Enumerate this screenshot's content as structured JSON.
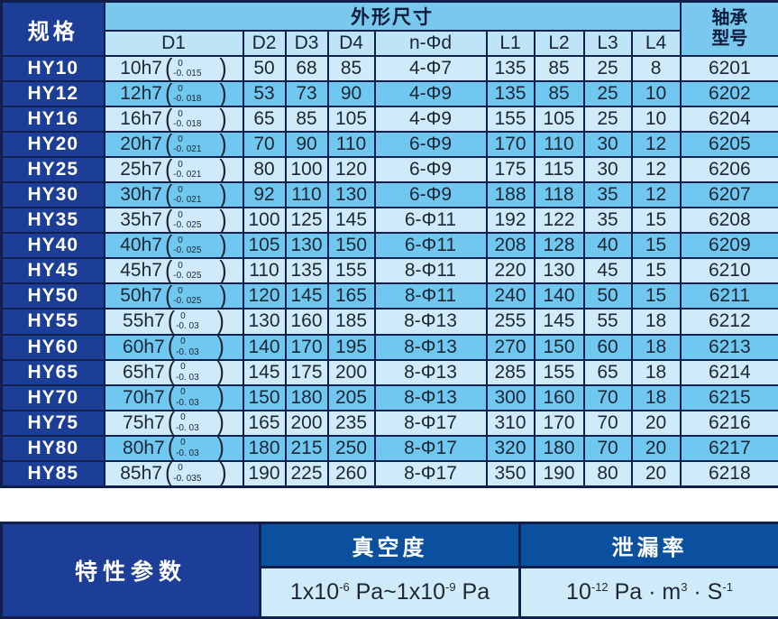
{
  "colors": {
    "navy": "#1d3e96",
    "azure": "#0b509f",
    "border": "#101f4c",
    "band": "#79c9ee",
    "subheader": "#bfe4f6",
    "row-light": "#cfeaf9",
    "row-medium": "#70c7f0",
    "text-dark": "#1d2736",
    "text-white": "#ffffff",
    "page-bg": "#ffffff"
  },
  "main_table": {
    "spec_header": "规格",
    "dims_header": "外形尺寸",
    "sub_columns": [
      "D1",
      "D2",
      "D3",
      "D4",
      "n-Φd",
      "L1",
      "L2",
      "L3",
      "L4"
    ],
    "bearing_header_line1": "轴承",
    "bearing_header_line2": "型号",
    "rows": [
      {
        "spec": "HY10",
        "d1": {
          "nominal": "10h7",
          "tol_upper": "0",
          "tol_lower": "-0. 015"
        },
        "d2": "50",
        "d3": "68",
        "d4": "85",
        "nd": "4-Φ7",
        "l1": "135",
        "l2": "85",
        "l3": "25",
        "l4": "8",
        "bearing": "6201"
      },
      {
        "spec": "HY12",
        "d1": {
          "nominal": "12h7",
          "tol_upper": "0",
          "tol_lower": "-0. 018"
        },
        "d2": "53",
        "d3": "73",
        "d4": "90",
        "nd": "4-Φ9",
        "l1": "135",
        "l2": "85",
        "l3": "25",
        "l4": "10",
        "bearing": "6202"
      },
      {
        "spec": "HY16",
        "d1": {
          "nominal": "16h7",
          "tol_upper": "0",
          "tol_lower": "-0. 018"
        },
        "d2": "65",
        "d3": "85",
        "d4": "105",
        "nd": "4-Φ9",
        "l1": "155",
        "l2": "105",
        "l3": "25",
        "l4": "10",
        "bearing": "6204"
      },
      {
        "spec": "HY20",
        "d1": {
          "nominal": "20h7",
          "tol_upper": "0",
          "tol_lower": "-0. 021"
        },
        "d2": "70",
        "d3": "90",
        "d4": "110",
        "nd": "6-Φ9",
        "l1": "170",
        "l2": "110",
        "l3": "30",
        "l4": "12",
        "bearing": "6205"
      },
      {
        "spec": "HY25",
        "d1": {
          "nominal": "25h7",
          "tol_upper": "0",
          "tol_lower": "-0. 021"
        },
        "d2": "80",
        "d3": "100",
        "d4": "120",
        "nd": "6-Φ9",
        "l1": "175",
        "l2": "115",
        "l3": "30",
        "l4": "12",
        "bearing": "6206"
      },
      {
        "spec": "HY30",
        "d1": {
          "nominal": "30h7",
          "tol_upper": "0",
          "tol_lower": "-0. 021"
        },
        "d2": "92",
        "d3": "110",
        "d4": "130",
        "nd": "6-Φ9",
        "l1": "188",
        "l2": "118",
        "l3": "35",
        "l4": "12",
        "bearing": "6207"
      },
      {
        "spec": "HY35",
        "d1": {
          "nominal": "35h7",
          "tol_upper": "0",
          "tol_lower": "-0. 025"
        },
        "d2": "100",
        "d3": "125",
        "d4": "145",
        "nd": "6-Φ11",
        "l1": "192",
        "l2": "122",
        "l3": "35",
        "l4": "15",
        "bearing": "6208"
      },
      {
        "spec": "HY40",
        "d1": {
          "nominal": "40h7",
          "tol_upper": "0",
          "tol_lower": "-0. 025"
        },
        "d2": "105",
        "d3": "130",
        "d4": "150",
        "nd": "6-Φ11",
        "l1": "208",
        "l2": "128",
        "l3": "40",
        "l4": "15",
        "bearing": "6209"
      },
      {
        "spec": "HY45",
        "d1": {
          "nominal": "45h7",
          "tol_upper": "0",
          "tol_lower": "-0. 025"
        },
        "d2": "110",
        "d3": "135",
        "d4": "155",
        "nd": "8-Φ11",
        "l1": "220",
        "l2": "130",
        "l3": "45",
        "l4": "15",
        "bearing": "6210"
      },
      {
        "spec": "HY50",
        "d1": {
          "nominal": "50h7",
          "tol_upper": "0",
          "tol_lower": "-0. 025"
        },
        "d2": "120",
        "d3": "145",
        "d4": "165",
        "nd": "8-Φ11",
        "l1": "240",
        "l2": "140",
        "l3": "50",
        "l4": "15",
        "bearing": "6211"
      },
      {
        "spec": "HY55",
        "d1": {
          "nominal": "55h7",
          "tol_upper": "0",
          "tol_lower": "-0. 03"
        },
        "d2": "130",
        "d3": "160",
        "d4": "185",
        "nd": "8-Φ13",
        "l1": "255",
        "l2": "145",
        "l3": "55",
        "l4": "18",
        "bearing": "6212"
      },
      {
        "spec": "HY60",
        "d1": {
          "nominal": "60h7",
          "tol_upper": "0",
          "tol_lower": "-0. 03"
        },
        "d2": "140",
        "d3": "170",
        "d4": "195",
        "nd": "8-Φ13",
        "l1": "270",
        "l2": "150",
        "l3": "60",
        "l4": "18",
        "bearing": "6213"
      },
      {
        "spec": "HY65",
        "d1": {
          "nominal": "65h7",
          "tol_upper": "0",
          "tol_lower": "-0. 03"
        },
        "d2": "145",
        "d3": "175",
        "d4": "200",
        "nd": "8-Φ13",
        "l1": "285",
        "l2": "155",
        "l3": "65",
        "l4": "18",
        "bearing": "6214"
      },
      {
        "spec": "HY70",
        "d1": {
          "nominal": "70h7",
          "tol_upper": "0",
          "tol_lower": "-0. 03"
        },
        "d2": "150",
        "d3": "180",
        "d4": "205",
        "nd": "8-Φ13",
        "l1": "300",
        "l2": "160",
        "l3": "70",
        "l4": "18",
        "bearing": "6215"
      },
      {
        "spec": "HY75",
        "d1": {
          "nominal": "75h7",
          "tol_upper": "0",
          "tol_lower": "-0. 03"
        },
        "d2": "165",
        "d3": "200",
        "d4": "235",
        "nd": "8-Φ17",
        "l1": "310",
        "l2": "170",
        "l3": "70",
        "l4": "20",
        "bearing": "6216"
      },
      {
        "spec": "HY80",
        "d1": {
          "nominal": "80h7",
          "tol_upper": "0",
          "tol_lower": "-0. 03"
        },
        "d2": "180",
        "d3": "215",
        "d4": "250",
        "nd": "8-Φ17",
        "l1": "320",
        "l2": "180",
        "l3": "70",
        "l4": "20",
        "bearing": "6217"
      },
      {
        "spec": "HY85",
        "d1": {
          "nominal": "85h7",
          "tol_upper": "0",
          "tol_lower": "-0. 035"
        },
        "d2": "190",
        "d3": "225",
        "d4": "260",
        "nd": "8-Φ17",
        "l1": "350",
        "l2": "190",
        "l3": "80",
        "l4": "20",
        "bearing": "6218"
      }
    ]
  },
  "params_table": {
    "title": "特性参数",
    "vacuum_header": "真空度",
    "leak_header": "泄漏率",
    "vacuum_value": [
      {
        "t": "1x10"
      },
      {
        "t": "-6",
        "sup": true
      },
      {
        "t": " Pa~1x10"
      },
      {
        "t": "-9",
        "sup": true
      },
      {
        "t": " Pa"
      }
    ],
    "leak_value": [
      {
        "t": "10"
      },
      {
        "t": "-12",
        "sup": true
      },
      {
        "t": " Pa · m"
      },
      {
        "t": "3",
        "sup": true
      },
      {
        "t": " · S"
      },
      {
        "t": "-1",
        "sup": true
      }
    ]
  }
}
